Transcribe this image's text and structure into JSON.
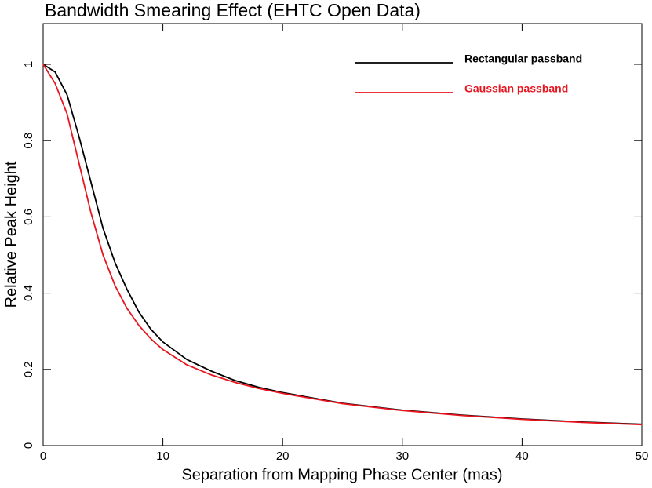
{
  "chart_data": {
    "type": "line",
    "title": "Bandwidth Smearing Effect (EHTC Open Data)",
    "x_label": "Separation from  Mapping Phase Center (mas)",
    "y_label": "Relative Peak Height",
    "x": [
      0,
      1,
      2,
      3,
      4,
      5,
      6,
      7,
      8,
      9,
      10,
      12,
      14,
      16,
      18,
      20,
      25,
      30,
      35,
      40,
      45,
      50
    ],
    "series": [
      {
        "name": "Rectangular passband",
        "color": "#000000",
        "values": [
          1,
          0.98,
          0.92,
          0.81,
          0.69,
          0.57,
          0.48,
          0.41,
          0.35,
          0.305,
          0.272,
          0.226,
          0.196,
          0.171,
          0.153,
          0.139,
          0.111,
          0.093,
          0.08,
          0.07,
          0.062,
          0.056
        ]
      },
      {
        "name": "Gaussian passband",
        "color": "#e8141e",
        "values": [
          1,
          0.95,
          0.87,
          0.74,
          0.61,
          0.5,
          0.42,
          0.36,
          0.315,
          0.28,
          0.252,
          0.212,
          0.186,
          0.166,
          0.15,
          0.137,
          0.11,
          0.092,
          0.079,
          0.069,
          0.061,
          0.055
        ]
      }
    ],
    "xlim": [
      0,
      50
    ],
    "xticks": [
      0,
      10,
      20,
      30,
      40,
      50
    ],
    "ylim": [
      0,
      1.107
    ],
    "yticks": [
      0,
      0.2,
      0.4,
      0.6,
      0.8,
      1
    ],
    "legend": "upper right"
  }
}
